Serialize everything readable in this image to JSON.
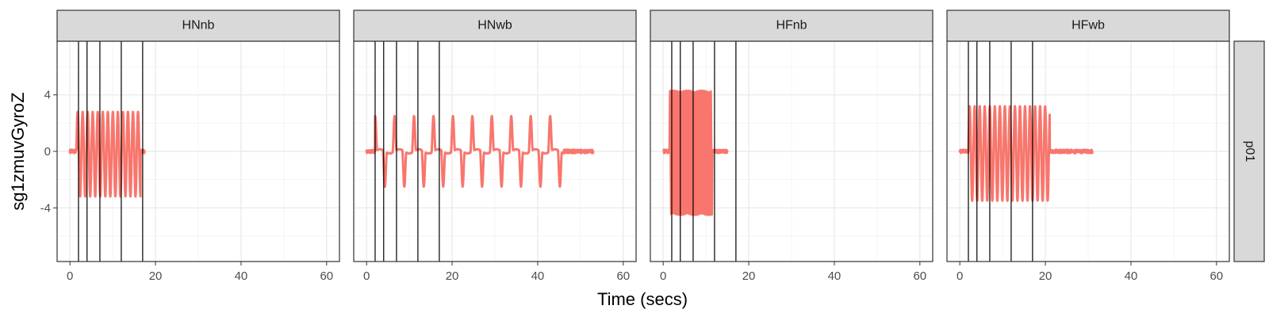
{
  "chart_data": {
    "type": "line",
    "xlabel": "Time (secs)",
    "ylabel": "sg1zmuvGyroZ",
    "xlim": [
      -3,
      63
    ],
    "ylim": [
      -7.8,
      7.8
    ],
    "x_ticks": [
      0,
      20,
      40,
      60
    ],
    "y_ticks": [
      4,
      0,
      -4
    ],
    "y_tick_labels": [
      "4",
      "0",
      "-4"
    ],
    "grid": true,
    "row_strip": "p01",
    "line_color": "#F8766D",
    "panels": [
      {
        "name": "HNnb",
        "vlines": [
          2,
          4,
          7,
          12,
          17
        ],
        "signal": {
          "start": 0,
          "active_start": 1.5,
          "active_end": 16.5,
          "end": 17.5,
          "freq": 0.85,
          "amp_pos": 2.8,
          "amp_neg": 3.2,
          "shape": "sine"
        }
      },
      {
        "name": "HNwb",
        "vlines": [
          2,
          4,
          7,
          12,
          17
        ],
        "signal": {
          "start": 0,
          "active_start": 2,
          "active_end": 46,
          "end": 53,
          "freq": 0.22,
          "amp_pos": 2.5,
          "amp_neg": 2.5,
          "shape": "spike"
        }
      },
      {
        "name": "HFnb",
        "vlines": [
          2,
          4,
          7,
          12,
          17
        ],
        "signal": {
          "start": 0,
          "active_start": 1.5,
          "active_end": 11.5,
          "end": 15,
          "freq": 1.9,
          "amp_pos": 4.3,
          "amp_neg": 4.5,
          "shape": "sine"
        }
      },
      {
        "name": "HFwb",
        "vlines": [
          2,
          4,
          7,
          12,
          17
        ],
        "signal": {
          "start": 0,
          "active_start": 2,
          "active_end": 21,
          "end": 31,
          "freq": 0.85,
          "amp_pos": 3.2,
          "amp_neg": 3.5,
          "shape": "sine"
        }
      }
    ]
  }
}
